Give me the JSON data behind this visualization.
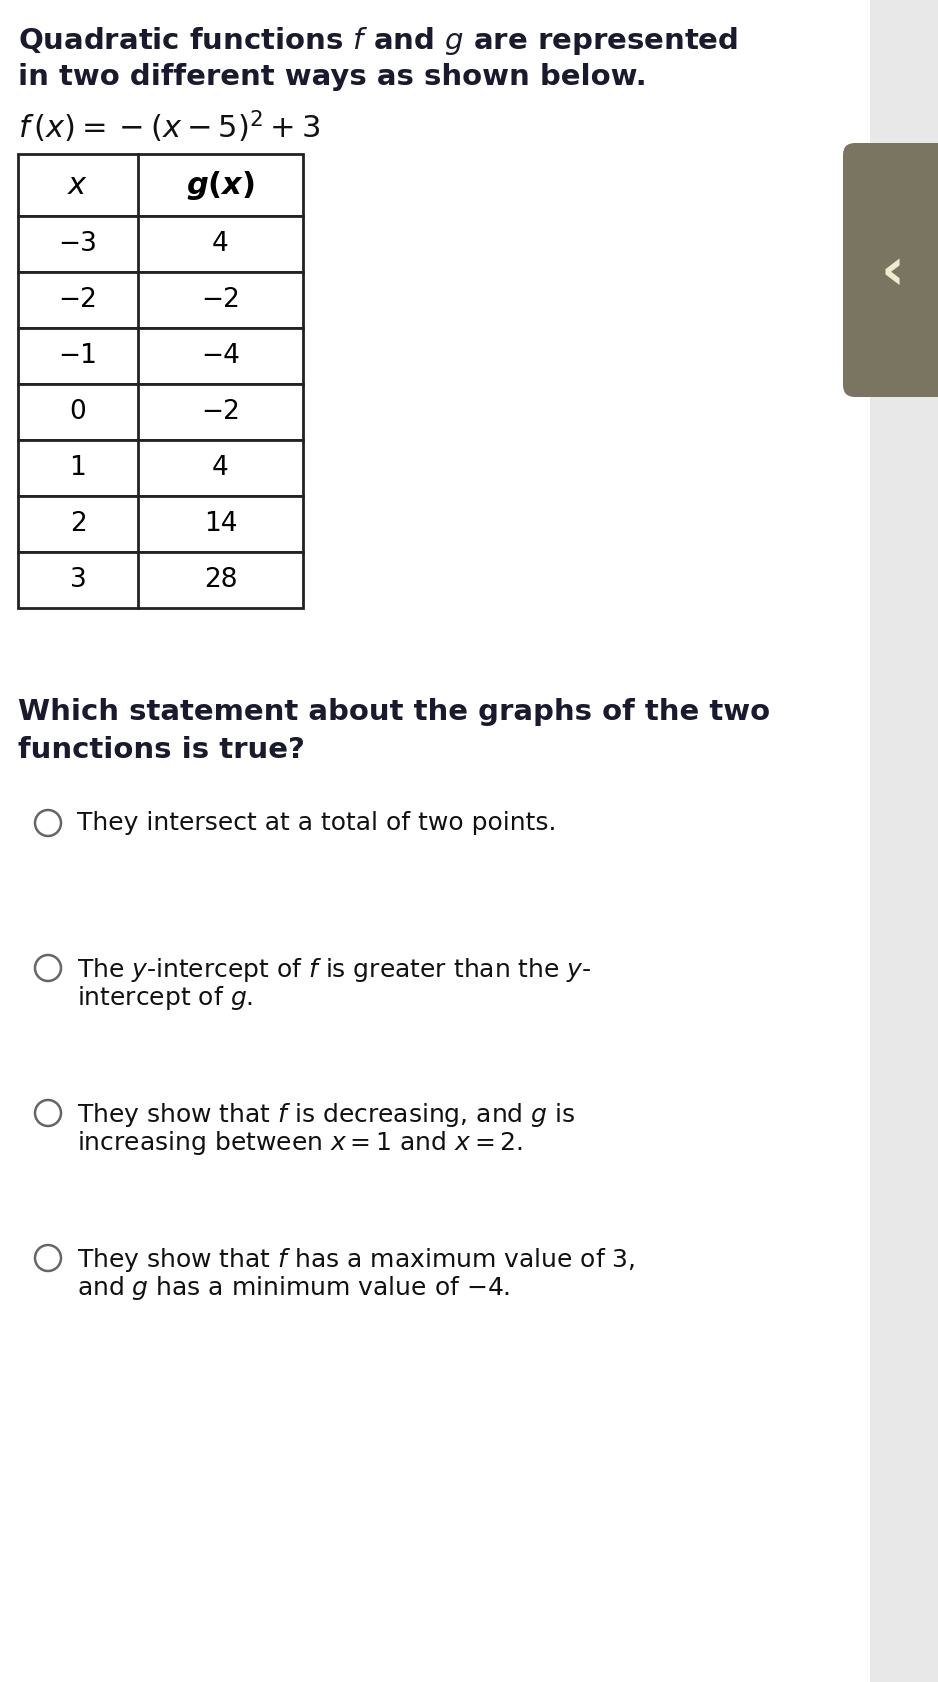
{
  "title_line1": "Quadratic functions $\\mathit{f}$ and $\\mathit{g}$ are represented",
  "title_line2": "in two different ways as shown below.",
  "formula": "$f\\,(x) = -(x-5)^2+3$",
  "table_header_col1": "$\\mathit{x}$",
  "table_header_col2": "$\\mathbf{\\mathit{g}(\\mathit{x})}$",
  "table_data": [
    [
      "−3",
      "4"
    ],
    [
      "−2",
      "−2"
    ],
    [
      "−1",
      "−4"
    ],
    [
      "0",
      "−2"
    ],
    [
      "1",
      "4"
    ],
    [
      "2",
      "14"
    ],
    [
      "3",
      "28"
    ]
  ],
  "question_line1": "Which statement about the graphs of the two",
  "question_line2": "functions is true?",
  "option1_line1": "They intersect at a total of two points.",
  "option1_line2": null,
  "option2_line1": "The $y$-intercept of $f$ is greater than the $y$-",
  "option2_line2": "intercept of $g$.",
  "option3_line1": "They show that $f$ is decreasing, and $g$ is",
  "option3_line2": "increasing between $x=1$ and $x=2$.",
  "option4_line1": "They show that $f$ has a maximum value of 3,",
  "option4_line2": "and $g$ has a minimum value of $-4$.",
  "bg_color": "#e8e8e8",
  "white_color": "#ffffff",
  "text_color": "#1a1a2e",
  "table_border_color": "#222222",
  "option_circle_color": "#666666",
  "right_panel_color": "#7a7560",
  "title_fontsize": 21,
  "formula_fontsize": 21,
  "table_fontsize": 19,
  "question_fontsize": 21,
  "option_fontsize": 18
}
